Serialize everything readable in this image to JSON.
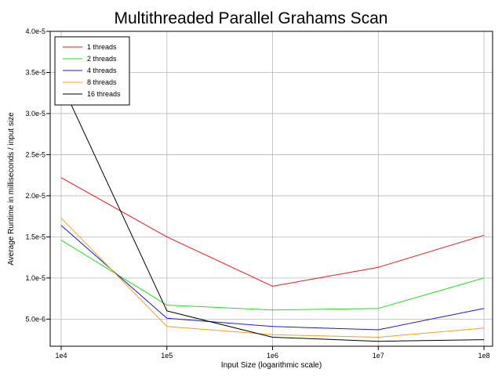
{
  "chart_data": {
    "type": "line",
    "title": "Multithreaded Parallel Grahams Scan",
    "xlabel": "Input Size (logarithmic scale)",
    "ylabel": "Average Runtime in milliseconds / input size",
    "x": [
      10000,
      100000,
      1000000,
      10000000,
      100000000
    ],
    "x_tick_labels": [
      "1e4",
      "1e5",
      "1e6",
      "1e7",
      "1e8"
    ],
    "x_scale": "log",
    "y_ticks": [
      5e-06,
      1e-05,
      1.5e-05,
      2e-05,
      2.5e-05,
      3e-05,
      3.5e-05,
      4e-05
    ],
    "y_tick_labels": [
      "5.0e-6",
      "1.0e-5",
      "1.5e-5",
      "2.0e-5",
      "2.5e-5",
      "3.0e-5",
      "3.5e-5",
      "4.0e-5"
    ],
    "ylim": [
      1.7e-06,
      4e-05
    ],
    "grid": true,
    "legend_position": "top-left",
    "series": [
      {
        "name": "1 threads",
        "color": "#e8191c",
        "values": [
          2.22e-05,
          1.5e-05,
          9e-06,
          1.13e-05,
          1.52e-05
        ]
      },
      {
        "name": "2 threads",
        "color": "#22dd22",
        "values": [
          1.46e-05,
          6.7e-06,
          6.1e-06,
          6.3e-06,
          1e-05
        ]
      },
      {
        "name": "4 threads",
        "color": "#1a1acc",
        "values": [
          1.64e-05,
          5.1e-06,
          4.1e-06,
          3.7e-06,
          6.3e-06
        ]
      },
      {
        "name": "8 threads",
        "color": "#f5a022",
        "values": [
          1.73e-05,
          4.1e-06,
          3.1e-06,
          2.8e-06,
          3.9e-06
        ]
      },
      {
        "name": "16 threads",
        "color": "#000000",
        "values": [
          3.37e-05,
          6e-06,
          2.8e-06,
          2.3e-06,
          2.5e-06
        ]
      }
    ]
  }
}
